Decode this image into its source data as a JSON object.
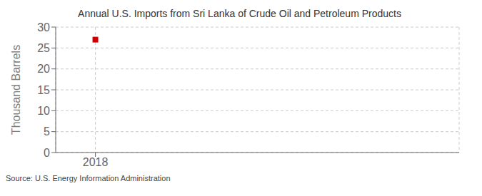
{
  "chart_data": {
    "type": "scatter",
    "title": "Annual U.S. Imports from Sri Lanka of Crude Oil and Petroleum Products",
    "y_label": "Thousand Barrels",
    "annotations": [
      "Source: U.S. Energy Information Administration"
    ],
    "x": [
      2018
    ],
    "values": [
      27
    ],
    "color": "#cc0000",
    "marker": "square",
    "xlim": [
      2017.4,
      2023.5
    ],
    "ylim": [
      0,
      30
    ],
    "xticks": [
      2018
    ],
    "yticks": [
      0,
      5,
      10,
      15,
      20,
      25,
      30
    ],
    "grid": true
  }
}
